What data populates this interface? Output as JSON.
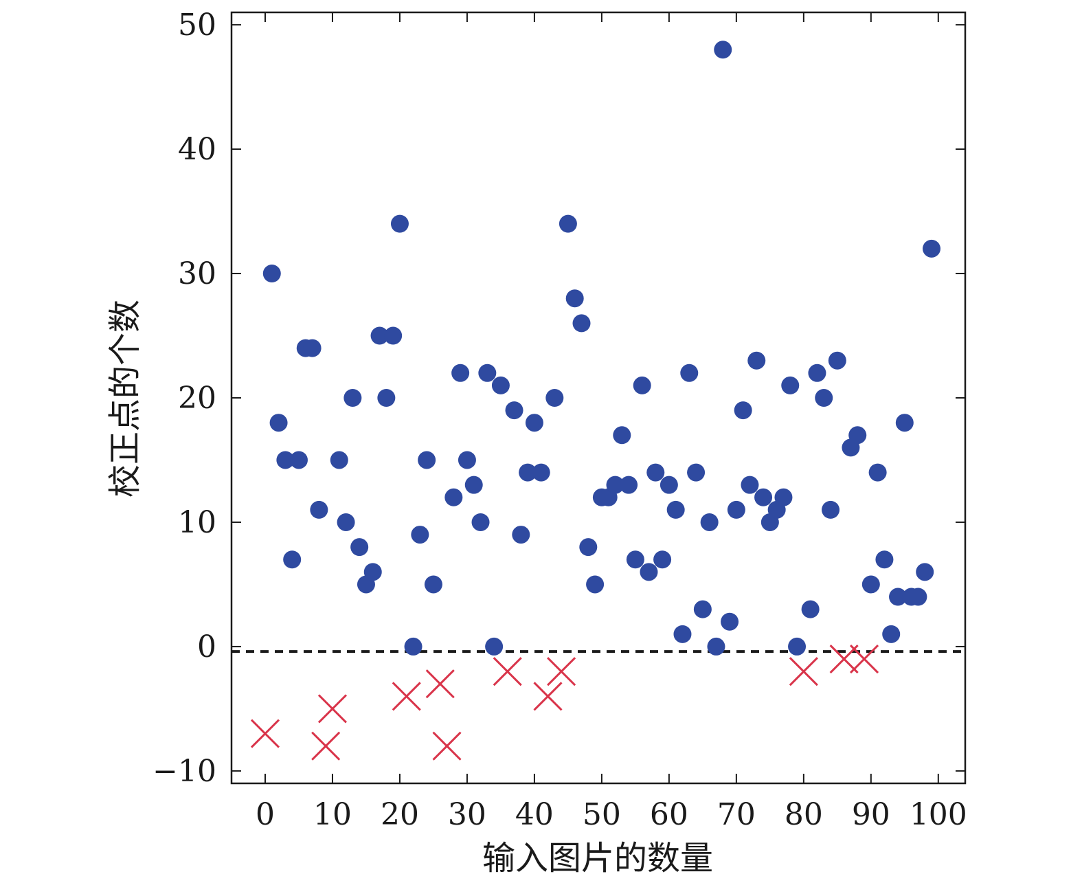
{
  "chart_data": {
    "type": "scatter",
    "title": "",
    "xlabel": "输入图片的数量",
    "ylabel": "校正点的个数",
    "xlim": [
      -5,
      104
    ],
    "ylim": [
      -11,
      51
    ],
    "xticks": [
      0,
      10,
      20,
      30,
      40,
      50,
      60,
      70,
      80,
      90,
      100
    ],
    "yticks": [
      -10,
      0,
      10,
      20,
      30,
      40,
      50
    ],
    "xtick_labels": [
      "0",
      "10",
      "20",
      "30",
      "40",
      "50",
      "60",
      "70",
      "80",
      "90",
      "100"
    ],
    "ytick_labels": [
      "−10",
      "0",
      "10",
      "20",
      "30",
      "40",
      "50"
    ],
    "grid": false,
    "reference_line": {
      "y": -0.4,
      "style": "dashed",
      "color": "#1a1a1a"
    },
    "series": [
      {
        "marker": "circle",
        "color": "#2f4aa0",
        "points": [
          [
            1,
            30
          ],
          [
            2,
            18
          ],
          [
            3,
            15
          ],
          [
            4,
            7
          ],
          [
            5,
            15
          ],
          [
            6,
            24
          ],
          [
            7,
            24
          ],
          [
            8,
            11
          ],
          [
            11,
            15
          ],
          [
            12,
            10
          ],
          [
            13,
            20
          ],
          [
            14,
            8
          ],
          [
            15,
            5
          ],
          [
            16,
            6
          ],
          [
            17,
            25
          ],
          [
            18,
            20
          ],
          [
            19,
            25
          ],
          [
            20,
            34
          ],
          [
            22,
            0
          ],
          [
            23,
            9
          ],
          [
            24,
            15
          ],
          [
            25,
            5
          ],
          [
            28,
            12
          ],
          [
            29,
            22
          ],
          [
            30,
            15
          ],
          [
            31,
            13
          ],
          [
            32,
            10
          ],
          [
            33,
            22
          ],
          [
            34,
            0
          ],
          [
            35,
            21
          ],
          [
            37,
            19
          ],
          [
            38,
            9
          ],
          [
            39,
            14
          ],
          [
            40,
            18
          ],
          [
            41,
            14
          ],
          [
            43,
            20
          ],
          [
            45,
            34
          ],
          [
            46,
            28
          ],
          [
            47,
            26
          ],
          [
            48,
            8
          ],
          [
            49,
            5
          ],
          [
            50,
            12
          ],
          [
            51,
            12
          ],
          [
            52,
            13
          ],
          [
            53,
            17
          ],
          [
            54,
            13
          ],
          [
            55,
            7
          ],
          [
            56,
            21
          ],
          [
            57,
            6
          ],
          [
            58,
            14
          ],
          [
            59,
            7
          ],
          [
            60,
            13
          ],
          [
            61,
            11
          ],
          [
            62,
            1
          ],
          [
            63,
            22
          ],
          [
            64,
            14
          ],
          [
            65,
            3
          ],
          [
            66,
            10
          ],
          [
            67,
            0
          ],
          [
            68,
            48
          ],
          [
            69,
            2
          ],
          [
            70,
            11
          ],
          [
            71,
            19
          ],
          [
            72,
            13
          ],
          [
            73,
            23
          ],
          [
            74,
            12
          ],
          [
            75,
            10
          ],
          [
            76,
            11
          ],
          [
            77,
            12
          ],
          [
            78,
            21
          ],
          [
            79,
            0
          ],
          [
            81,
            3
          ],
          [
            82,
            22
          ],
          [
            83,
            20
          ],
          [
            84,
            11
          ],
          [
            85,
            23
          ],
          [
            87,
            16
          ],
          [
            88,
            17
          ],
          [
            90,
            5
          ],
          [
            91,
            14
          ],
          [
            92,
            7
          ],
          [
            93,
            1
          ],
          [
            94,
            4
          ],
          [
            95,
            18
          ],
          [
            96,
            4
          ],
          [
            97,
            4
          ],
          [
            98,
            6
          ],
          [
            99,
            32
          ]
        ]
      },
      {
        "marker": "x",
        "color": "#d9344a",
        "points": [
          [
            0,
            -7
          ],
          [
            9,
            -8
          ],
          [
            10,
            -5
          ],
          [
            21,
            -4
          ],
          [
            26,
            -3
          ],
          [
            27,
            -8
          ],
          [
            36,
            -2
          ],
          [
            42,
            -4
          ],
          [
            44,
            -2
          ],
          [
            80,
            -2
          ],
          [
            86,
            -1
          ],
          [
            89,
            -1
          ]
        ]
      }
    ]
  }
}
